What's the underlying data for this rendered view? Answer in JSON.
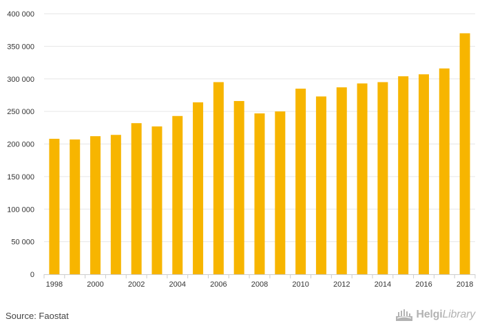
{
  "chart_data": {
    "type": "bar",
    "categories": [
      "1998",
      "1999",
      "2000",
      "2001",
      "2002",
      "2003",
      "2004",
      "2005",
      "2006",
      "2007",
      "2008",
      "2009",
      "2010",
      "2011",
      "2012",
      "2013",
      "2014",
      "2015",
      "2016",
      "2017",
      "2018"
    ],
    "values": [
      208000,
      207000,
      212000,
      214000,
      232000,
      227000,
      243000,
      264000,
      295000,
      266000,
      247000,
      250000,
      285000,
      273000,
      287000,
      293000,
      295000,
      304000,
      307000,
      316000,
      370000
    ],
    "x_tick_labels": [
      "1998",
      "2000",
      "2002",
      "2004",
      "2006",
      "2008",
      "2010",
      "2012",
      "2014",
      "2016",
      "2018"
    ],
    "y_tick_labels": [
      "0",
      "50 000",
      "100 000",
      "150 000",
      "200 000",
      "250 000",
      "300 000",
      "350 000",
      "400 000"
    ],
    "ylim": [
      0,
      400000
    ],
    "grid": true,
    "bar_color": "#f7b500",
    "title": "",
    "xlabel": "",
    "ylabel": ""
  },
  "footer": {
    "source": "Source: Faostat",
    "logo_part1": "Helgi",
    "logo_part2": "Library",
    "logo_icon": "helgi-library-logo-icon"
  }
}
